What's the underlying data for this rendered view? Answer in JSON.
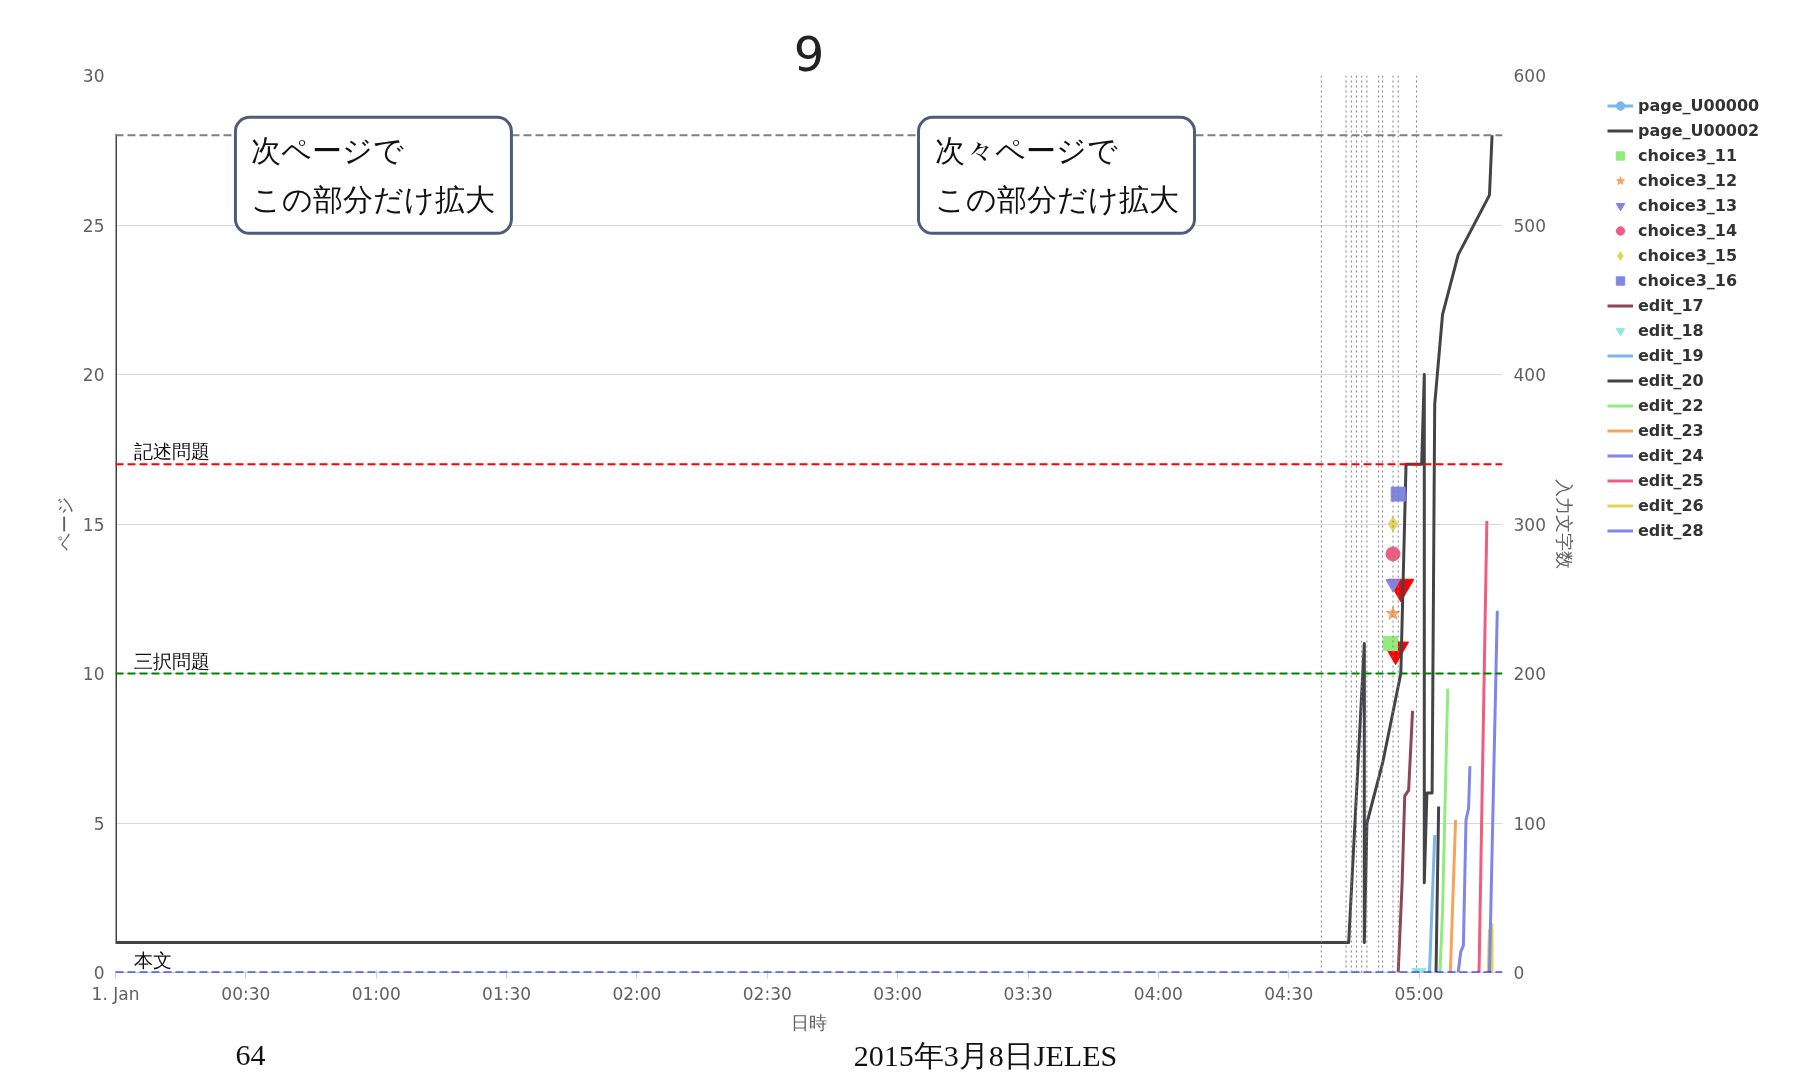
{
  "chart_data": {
    "type": "line",
    "title": "9",
    "xlabel": "日時",
    "ylabel": "ページ",
    "y2label": "入力文字数",
    "xlim": [
      0,
      5.32
    ],
    "ylim": [
      0,
      30
    ],
    "y2lim": [
      0,
      600
    ],
    "xticks": [
      {
        "value": 0,
        "label": "1. Jan"
      },
      {
        "value": 0.5,
        "label": "00:30"
      },
      {
        "value": 1,
        "label": "01:00"
      },
      {
        "value": 1.5,
        "label": "01:30"
      },
      {
        "value": 2,
        "label": "02:00"
      },
      {
        "value": 2.5,
        "label": "02:30"
      },
      {
        "value": 3,
        "label": "03:00"
      },
      {
        "value": 3.5,
        "label": "03:30"
      },
      {
        "value": 4,
        "label": "04:00"
      },
      {
        "value": 4.5,
        "label": "04:30"
      },
      {
        "value": 5,
        "label": "05:00"
      }
    ],
    "yticks": [
      0,
      5,
      10,
      15,
      20,
      25,
      30
    ],
    "y2ticks": [
      0,
      100,
      200,
      300,
      400,
      500,
      600
    ],
    "grid": "y",
    "legend": "top right",
    "series": [
      {
        "color": "#ff0000",
        "type": "scatter",
        "marker": "triangle_down",
        "x": [
          4.93,
          4.91
        ],
        "values": [
          12.9,
          10.8
        ]
      },
      {
        "name": "page_U00000",
        "color": "#7cb5ec",
        "marker": "circle"
      },
      {
        "name": "page_U00002",
        "color": "#434348",
        "x": [
          0,
          0,
          0,
          4.73,
          4.79,
          4.79,
          4.8,
          4.86,
          4.93,
          4.95,
          5.01,
          5.02,
          5.02,
          5.03,
          5.05,
          5.06,
          5.09,
          5.15,
          5.27,
          5.28
        ],
        "values": [
          1,
          28,
          1,
          1,
          11,
          1,
          5,
          7,
          10,
          17,
          17,
          20,
          3,
          6,
          6,
          19,
          22,
          24,
          26,
          28
        ]
      },
      {
        "name": "choice3_11",
        "color": "#90ed7d",
        "type": "scatter",
        "marker": "square",
        "x": [
          4.89
        ],
        "values": [
          11
        ]
      },
      {
        "name": "choice3_12",
        "color": "#f7a35c",
        "type": "scatter",
        "marker": "star",
        "x": [
          4.9
        ],
        "values": [
          12
        ]
      },
      {
        "name": "choice3_13",
        "color": "#8085e9",
        "type": "scatter",
        "marker": "triangle_down",
        "x": [
          4.9
        ],
        "values": [
          13
        ]
      },
      {
        "name": "choice3_14",
        "color": "#f15c80",
        "type": "scatter",
        "marker": "circle",
        "x": [
          4.9
        ],
        "values": [
          14
        ]
      },
      {
        "name": "choice3_15",
        "color": "#e4d354",
        "type": "scatter",
        "marker": "diamond",
        "x": [
          4.9
        ],
        "values": [
          15
        ]
      },
      {
        "name": "choice3_16",
        "color": "#8085e8",
        "type": "scatter",
        "marker": "square",
        "x": [
          4.92
        ],
        "values": [
          16
        ]
      },
      {
        "name": "edit_17",
        "color": "#8d4653",
        "axis": "y2",
        "x": [
          4.92,
          4.935,
          4.945,
          4.96,
          4.975
        ],
        "values": [
          0,
          60,
          118,
          122,
          175
        ]
      },
      {
        "name": "edit_18",
        "color": "#91e8e1",
        "type": "scatter",
        "marker": "triangle_down",
        "axis": "y2",
        "x": [
          5.0
        ],
        "values": [
          0
        ]
      },
      {
        "name": "edit_19",
        "color": "#7cb5ec",
        "axis": "y2",
        "x": [
          5.04,
          5.06
        ],
        "values": [
          0,
          92
        ]
      },
      {
        "name": "edit_20",
        "color": "#434348",
        "axis": "y2",
        "x": [
          5.065,
          5.075
        ],
        "values": [
          0,
          111
        ]
      },
      {
        "name": "edit_22",
        "color": "#90ed7d",
        "axis": "y2",
        "x": [
          5.08,
          5.09,
          5.11
        ],
        "values": [
          0,
          40,
          190
        ]
      },
      {
        "name": "edit_23",
        "color": "#f7a35c",
        "axis": "y2",
        "x": [
          5.12,
          5.14
        ],
        "values": [
          0,
          102
        ]
      },
      {
        "name": "edit_24",
        "color": "#8085e9",
        "axis": "y2",
        "x": [
          5.15,
          5.16,
          5.17,
          5.18,
          5.19,
          5.195
        ],
        "values": [
          0,
          14,
          18,
          102,
          110,
          138
        ]
      },
      {
        "name": "edit_25",
        "color": "#f15c80",
        "axis": "y2",
        "x": [
          5.23,
          5.26
        ],
        "values": [
          0,
          302
        ]
      },
      {
        "name": "edit_26",
        "color": "#e4d354",
        "axis": "y2",
        "x": [
          5.265,
          5.27,
          5.28,
          5.28
        ],
        "values": [
          0,
          28,
          32,
          0
        ]
      },
      {
        "name": "edit_28",
        "color": "#8085e8",
        "axis": "y2",
        "x": [
          5.27,
          5.3
        ],
        "values": [
          0,
          242
        ]
      }
    ],
    "ref_lines": [
      {
        "axis": "y",
        "value": 28,
        "color": "#808080",
        "line_style": "dashed"
      },
      {
        "axis": "y",
        "value": 17,
        "label": "記述問題",
        "color": "#ff0000",
        "line_style": "dashed"
      },
      {
        "axis": "y",
        "value": 10,
        "label": "三択問題",
        "color": "#008000",
        "line_style": "dashed"
      },
      {
        "axis": "y",
        "value": 0,
        "label": "本文",
        "color": "#0000ff",
        "line_style": "dashed"
      },
      {
        "axis": "x",
        "value": 4.625,
        "color": "#808080",
        "line_style": "dotted"
      },
      {
        "axis": "x",
        "value": 4.72,
        "color": "#808080",
        "line_style": "dotted"
      },
      {
        "axis": "x",
        "value": 4.74,
        "color": "#808080",
        "line_style": "dotted"
      },
      {
        "axis": "x",
        "value": 4.76,
        "color": "#808080",
        "line_style": "dotted"
      },
      {
        "axis": "x",
        "value": 4.78,
        "color": "#808080",
        "line_style": "dotted"
      },
      {
        "axis": "x",
        "value": 4.8,
        "color": "#808080",
        "line_style": "dotted"
      },
      {
        "axis": "x",
        "value": 4.845,
        "color": "#808080",
        "line_style": "dotted"
      },
      {
        "axis": "x",
        "value": 4.86,
        "color": "#808080",
        "line_style": "dotted"
      },
      {
        "axis": "x",
        "value": 4.9,
        "color": "#808080",
        "line_style": "dotted"
      },
      {
        "axis": "x",
        "value": 4.92,
        "color": "#808080",
        "line_style": "dotted"
      },
      {
        "axis": "x",
        "value": 4.99,
        "color": "#808080",
        "line_style": "dotted"
      }
    ],
    "annotations": [
      "次ページでこの部分だけ拡大",
      "次々ページでこの部分だけ拡大",
      "64",
      "2015年3月8日JELES"
    ]
  }
}
